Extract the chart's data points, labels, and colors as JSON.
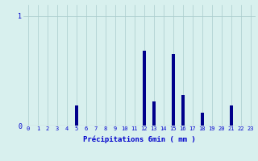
{
  "title": "",
  "xlabel": "Précipitations 6min ( mm )",
  "ylabel": "",
  "background_color": "#d8f0ee",
  "bar_color": "#00008b",
  "grid_color": "#aacccc",
  "axis_color": "#888888",
  "text_color": "#0000cc",
  "hours": [
    0,
    1,
    2,
    3,
    4,
    5,
    6,
    7,
    8,
    9,
    10,
    11,
    12,
    13,
    14,
    15,
    16,
    17,
    18,
    19,
    20,
    21,
    22,
    23
  ],
  "values": [
    0,
    0,
    0,
    0,
    0,
    0.18,
    0,
    0,
    0,
    0,
    0,
    0,
    0.68,
    0.22,
    0,
    0.65,
    0.28,
    0,
    0.12,
    0,
    0,
    0.18,
    0,
    0
  ],
  "ylim": [
    0,
    1.1
  ],
  "yticks": [
    0,
    1
  ],
  "xlim": [
    -0.5,
    23.5
  ],
  "bar_width": 0.35,
  "figwidth": 3.2,
  "figheight": 2.0,
  "dpi": 100
}
